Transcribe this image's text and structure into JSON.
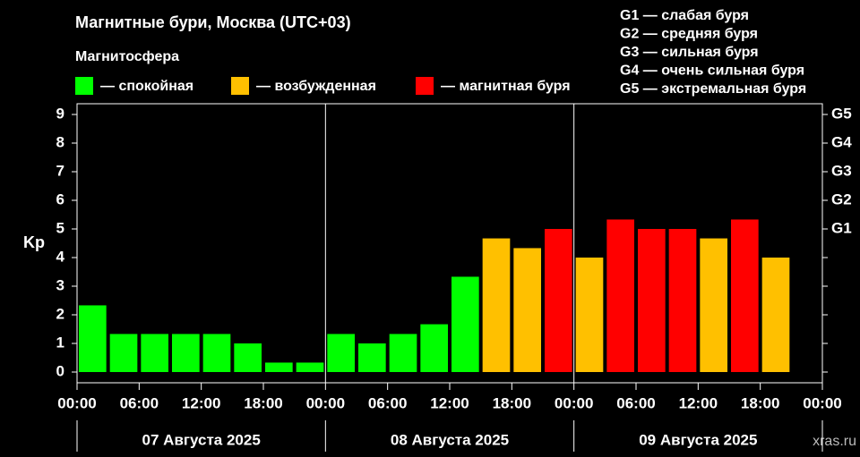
{
  "chart_data": {
    "type": "bar",
    "title": "Магнитные бури, Москва (UTC+03)",
    "legend_title": "Магнитосфера",
    "legend": [
      {
        "label": "— спокойная",
        "color": "#00ff00"
      },
      {
        "label": "— возбужденная",
        "color": "#ffc000"
      },
      {
        "label": "— магнитная буря",
        "color": "#ff0000"
      }
    ],
    "storm_scale": [
      "G1 — слабая буря",
      "G2 — средняя буря",
      "G3 — сильная буря",
      "G4 — очень сильная буря",
      "G5 — экстремальная буря"
    ],
    "ylabel": "Kp",
    "x": [
      0,
      3,
      6,
      9,
      12,
      15,
      18,
      21,
      24,
      27,
      30,
      33,
      36,
      39,
      42,
      45,
      48,
      51,
      54,
      57,
      60,
      63,
      66,
      69
    ],
    "values": [
      2.33,
      1.33,
      1.33,
      1.33,
      1.33,
      1,
      0.33,
      0.33,
      1.33,
      1,
      1.33,
      1.67,
      3.33,
      4.67,
      4.33,
      5,
      4,
      5.33,
      5,
      5,
      4.67,
      5.33,
      4,
      null
    ],
    "colors": [
      "#00ff00",
      "#00ff00",
      "#00ff00",
      "#00ff00",
      "#00ff00",
      "#00ff00",
      "#00ff00",
      "#00ff00",
      "#00ff00",
      "#00ff00",
      "#00ff00",
      "#00ff00",
      "#00ff00",
      "#ffc000",
      "#ffc000",
      "#ff0000",
      "#ffc000",
      "#ff0000",
      "#ff0000",
      "#ff0000",
      "#ffc000",
      "#ff0000",
      "#ffc000",
      null
    ],
    "bar_hours": 3,
    "xlim": [
      0,
      72
    ],
    "xticks": [
      {
        "value": 0,
        "label": "00:00"
      },
      {
        "value": 6,
        "label": "06:00"
      },
      {
        "value": 12,
        "label": "12:00"
      },
      {
        "value": 18,
        "label": "18:00"
      },
      {
        "value": 24,
        "label": "00:00"
      },
      {
        "value": 30,
        "label": "06:00"
      },
      {
        "value": 36,
        "label": "12:00"
      },
      {
        "value": 42,
        "label": "18:00"
      },
      {
        "value": 48,
        "label": "00:00"
      },
      {
        "value": 54,
        "label": "06:00"
      },
      {
        "value": 60,
        "label": "12:00"
      },
      {
        "value": 66,
        "label": "18:00"
      },
      {
        "value": 72,
        "label": "00:00"
      }
    ],
    "day_labels": [
      "07 Августа 2025",
      "08 Августа 2025",
      "09 Августа 2025"
    ],
    "ylim": [
      -0.375,
      9.375
    ],
    "yticks": [
      0,
      1,
      2,
      3,
      4,
      5,
      6,
      7,
      8,
      9
    ],
    "y2lim": [
      -0.375,
      9.375
    ],
    "y2ticks": [
      {
        "value": 5,
        "label": "G1"
      },
      {
        "value": 6,
        "label": "G2"
      },
      {
        "value": 7,
        "label": "G3"
      },
      {
        "value": 8,
        "label": "G4"
      },
      {
        "value": 9,
        "label": "G5"
      }
    ],
    "grid": false,
    "watermark": "xras.ru"
  }
}
